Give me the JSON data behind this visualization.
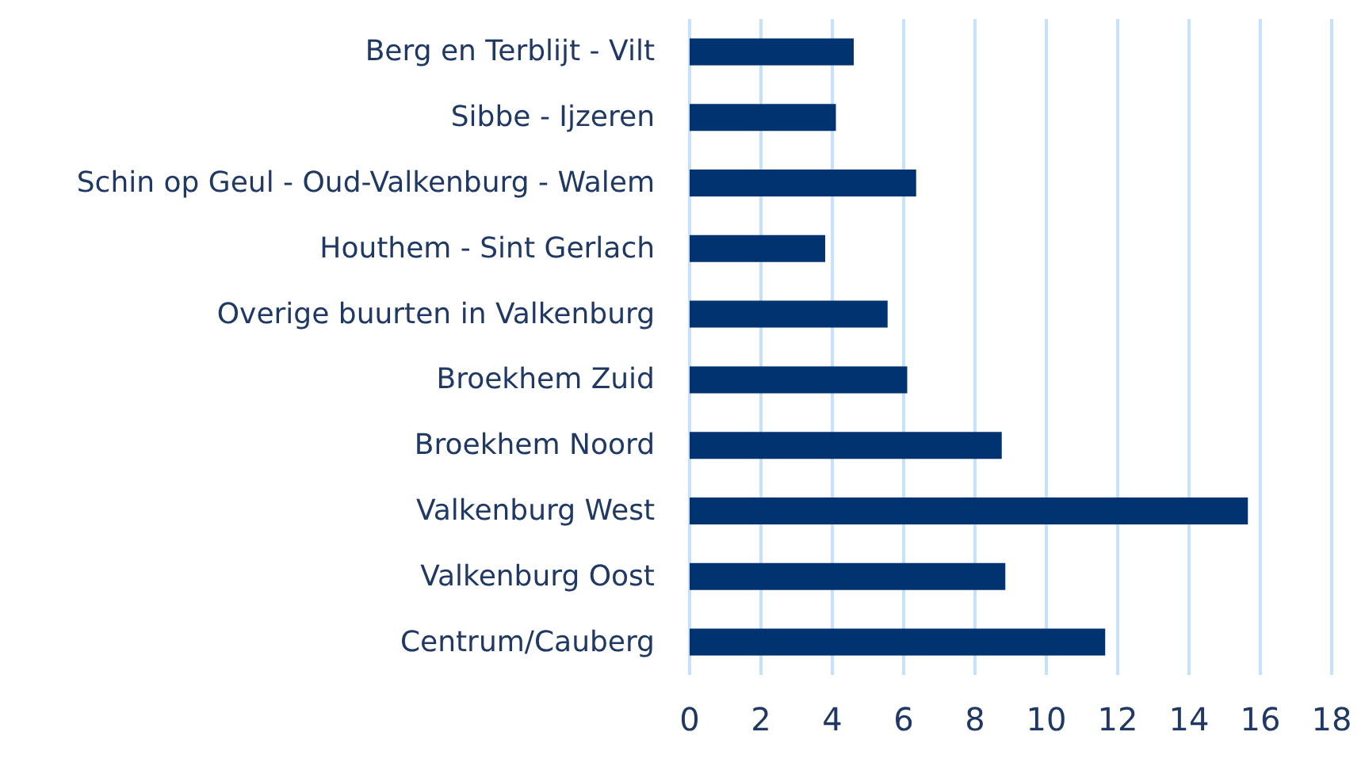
{
  "chart_data": {
    "type": "bar",
    "orientation": "horizontal",
    "categories": [
      "Berg en Terblijt - Vilt",
      "Sibbe - Ijzeren",
      "Schin op Geul - Oud-Valkenburg - Walem",
      "Houthem - Sint Gerlach",
      "Overige buurten in Valkenburg",
      "Broekhem Zuid",
      "Broekhem Noord",
      "Valkenburg West",
      "Valkenburg Oost",
      "Centrum/Cauberg"
    ],
    "values": [
      4.6,
      4.1,
      6.35,
      3.8,
      5.55,
      6.1,
      8.75,
      15.65,
      8.85,
      11.65
    ],
    "color": "#003370",
    "xlim": [
      0,
      18
    ],
    "xticks": [
      0,
      2,
      4,
      6,
      8,
      10,
      12,
      14,
      16,
      18
    ],
    "grid": "x"
  }
}
